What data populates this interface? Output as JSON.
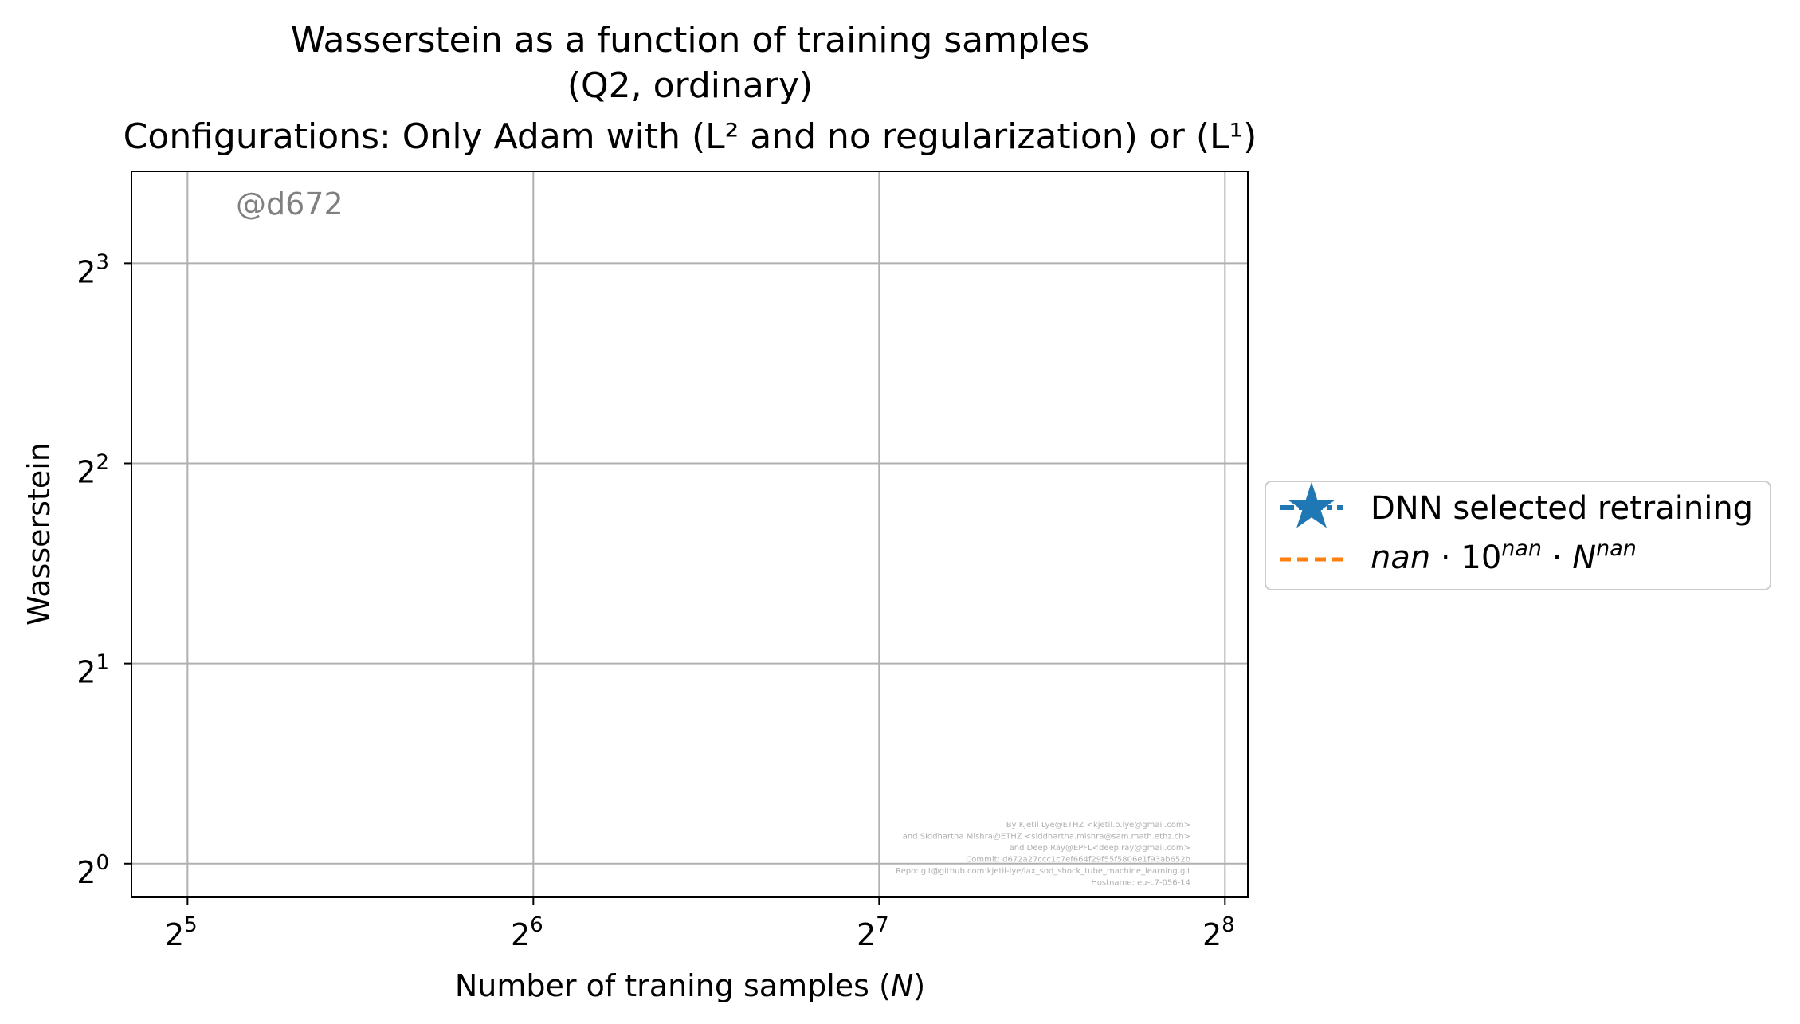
{
  "chart_data": {
    "type": "line",
    "title_lines": [
      "Wasserstein as a function of training samples",
      "(Q2, ordinary)",
      "Configurations: Only Adam with (L² and no regularization) or (L¹)"
    ],
    "xlabel": "Number of traning samples (N)",
    "ylabel": "Wasserstein",
    "x_scale": "log2",
    "y_scale": "log2",
    "x_ticks": [
      32,
      64,
      128,
      256
    ],
    "x_tick_labels": [
      "2⁵",
      "2⁶",
      "2⁷",
      "2⁸"
    ],
    "y_ticks": [
      1,
      2,
      4,
      8
    ],
    "y_tick_labels": [
      "2⁰",
      "2¹",
      "2²",
      "2³"
    ],
    "xlim": [
      28.6,
      268
    ],
    "ylim": [
      0.89,
      11.0
    ],
    "grid": true,
    "legend_position": "outside-right",
    "series": [
      {
        "name": "DNN selected retraining",
        "color": "#1f77b4",
        "marker": "star",
        "linestyle": "dashdot",
        "x": [],
        "y": []
      },
      {
        "name": "nan · 10^nan · N^nan",
        "color": "#ff7f0e",
        "marker": "none",
        "linestyle": "dashed",
        "x": [],
        "y": []
      }
    ],
    "watermark": "@d672",
    "credits": [
      "By Kjetil Lye@ETHZ <kjetil.o.lye@gmail.com>",
      "and Siddhartha Mishra@ETHZ <siddhartha.mishra@sam.math.ethz.ch>",
      "and Deep Ray@EPFL<deep.ray@gmail.com>",
      "Commit: d672a27ccc1c7ef664f29f55f5806e1f93ab652b",
      "Repo: git@github.com:kjetil-lye/lax_sod_shock_tube_machine_learning.git",
      "Hostname: eu-c7-056-14"
    ]
  }
}
